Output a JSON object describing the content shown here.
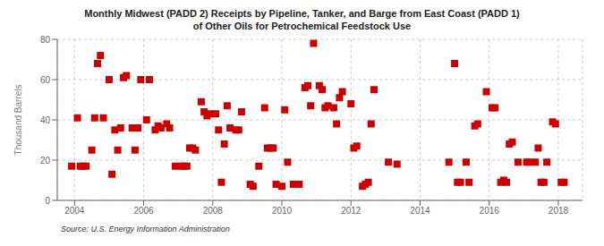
{
  "chart_data": {
    "type": "scatter",
    "title": "Monthly Midwest (PADD 2) Receipts by Pipeline, Tanker, and Barge from East Coast (PADD 1)",
    "subtitle": "of Other Oils for Petrochemical Feedstock Use",
    "y_label": "Thousand Barrels",
    "annotation": "Source: U.S. Energy Information Administration",
    "xlim": [
      2003.5,
      2018.7
    ],
    "ylim": [
      0,
      80
    ],
    "xticks": [
      2004,
      2006,
      2008,
      2010,
      2012,
      2014,
      2016,
      2018
    ],
    "yticks": [
      0,
      20,
      40,
      60,
      80
    ],
    "color": "#cc0000",
    "marker": "square",
    "grid": true,
    "x": [
      2003.917,
      2004.083,
      2004.167,
      2004.25,
      2004.333,
      2004.5,
      2004.583,
      2004.667,
      2004.75,
      2004.833,
      2005.0,
      2005.083,
      2005.167,
      2005.25,
      2005.333,
      2005.417,
      2005.5,
      2005.667,
      2005.75,
      2005.833,
      2005.917,
      2006.083,
      2006.167,
      2006.333,
      2006.417,
      2006.5,
      2006.667,
      2006.75,
      2006.917,
      2007.083,
      2007.167,
      2007.25,
      2007.333,
      2007.417,
      2007.5,
      2007.667,
      2007.75,
      2007.833,
      2007.917,
      2008.083,
      2008.167,
      2008.25,
      2008.333,
      2008.417,
      2008.5,
      2008.667,
      2008.75,
      2008.833,
      2009.083,
      2009.167,
      2009.333,
      2009.5,
      2009.583,
      2009.667,
      2009.75,
      2009.833,
      2010.0,
      2010.083,
      2010.167,
      2010.333,
      2010.5,
      2010.667,
      2010.75,
      2010.833,
      2010.917,
      2011.083,
      2011.167,
      2011.25,
      2011.333,
      2011.5,
      2011.583,
      2011.667,
      2011.75,
      2012.0,
      2012.083,
      2012.167,
      2012.333,
      2012.417,
      2012.5,
      2012.583,
      2012.667,
      2013.083,
      2013.333,
      2014.833,
      2015.0,
      2015.083,
      2015.167,
      2015.333,
      2015.417,
      2015.583,
      2015.667,
      2015.917,
      2016.083,
      2016.167,
      2016.333,
      2016.417,
      2016.5,
      2016.583,
      2016.667,
      2016.833,
      2017.083,
      2017.167,
      2017.333,
      2017.417,
      2017.5,
      2017.583,
      2017.667,
      2017.833,
      2017.917,
      2018.083,
      2018.167
    ],
    "values": [
      17,
      41,
      17,
      17,
      17,
      25,
      41,
      68,
      72,
      41,
      60,
      13,
      35,
      25,
      36,
      61,
      62,
      36,
      25,
      36,
      60,
      40,
      60,
      35,
      37,
      36,
      38,
      36,
      17,
      17,
      17,
      17,
      26,
      26,
      25,
      49,
      44,
      42,
      43,
      43,
      35,
      9,
      28,
      47,
      36,
      35,
      35,
      44,
      8,
      7,
      17,
      46,
      26,
      26,
      26,
      8,
      7,
      45,
      19,
      8,
      8,
      56,
      57,
      47,
      78,
      57,
      55,
      46,
      47,
      46,
      38,
      51,
      54,
      48,
      26,
      27,
      7,
      8,
      9,
      38,
      55,
      19,
      18,
      19,
      68,
      9,
      9,
      19,
      9,
      37,
      38,
      54,
      46,
      46,
      9,
      10,
      9,
      28,
      29,
      19,
      19,
      19,
      19,
      26,
      9,
      9,
      19,
      39,
      38,
      9,
      9
    ]
  }
}
